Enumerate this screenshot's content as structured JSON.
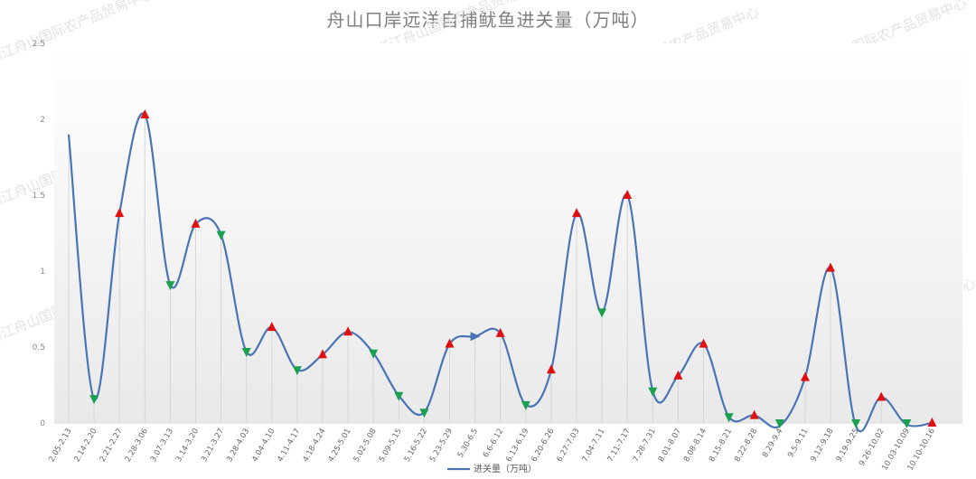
{
  "chart_data": {
    "type": "line",
    "title": "舟山口岸远洋自捕鱿鱼进关量（万吨）",
    "watermark": "浙江舟山国际农产品贸易中心",
    "legend": {
      "position": "bottom",
      "label": "进关量（万吨）"
    },
    "ylim": [
      0,
      2.5
    ],
    "y_ticks": [
      "0",
      "0.5",
      "1",
      "1.5",
      "2",
      "2.5"
    ],
    "series_color": "#4a74b4",
    "up_color": "#e01010",
    "down_color": "#1aa050",
    "grid": false,
    "categories": [
      "2.05-2.13",
      "2.14-2.20",
      "2.21-2.27",
      "2.28-3.06",
      "3.07-3.13",
      "3.14-3.20",
      "3.21-3.27",
      "3.28-4.03",
      "4.04-4.10",
      "4.11-4.17",
      "4.18-4.24",
      "4.25-5.01",
      "5.02-5.08",
      "5.09-5.15",
      "5.16-5.22",
      "5.23-5.29",
      "5.30-6.5",
      "6.6-6.12",
      "6.13-6.19",
      "6.20-6.26",
      "6.27-7.03",
      "7.04-7.11",
      "7.11-7.17",
      "7.28-7.31",
      "8.01-8.07",
      "8.08-8.14",
      "8.15-8.21",
      "8.22-8.28",
      "8.29-9.4",
      "9.5-9.11",
      "9.12-9.18",
      "9.19-9.25",
      "9.26-10.02",
      "10.03-10.09",
      "10.10-10.16"
    ],
    "series": [
      {
        "name": "进关量（万吨）",
        "values": [
          1.9,
          0.16,
          1.38,
          2.03,
          0.91,
          1.31,
          1.24,
          0.47,
          0.63,
          0.35,
          0.45,
          0.6,
          0.46,
          0.18,
          0.07,
          0.52,
          0.57,
          0.59,
          0.12,
          0.35,
          1.38,
          0.73,
          1.5,
          0.21,
          0.31,
          0.52,
          0.04,
          0.05,
          -0.02,
          0.3,
          1.02,
          -0.02,
          0.17,
          -0.01,
          0.0
        ],
        "markers": [
          "none",
          "down",
          "up",
          "up",
          "down",
          "up",
          "down",
          "down",
          "up",
          "down",
          "up",
          "up",
          "down",
          "down",
          "down",
          "up",
          "right",
          "up",
          "down",
          "up",
          "up",
          "down",
          "up",
          "down",
          "up",
          "up",
          "down",
          "up",
          "down",
          "up",
          "up",
          "down",
          "up",
          "down",
          "up"
        ]
      }
    ]
  }
}
